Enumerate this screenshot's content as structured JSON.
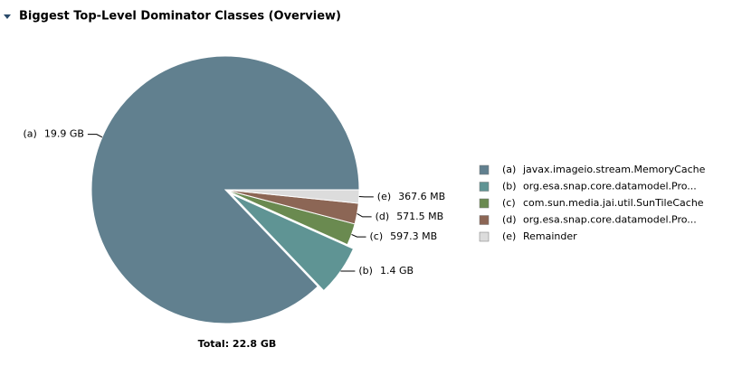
{
  "chart_data": {
    "type": "pie",
    "title": "Biggest Top-Level Dominator Classes (Overview)",
    "total": "Total: 22.8 GB",
    "letters": [
      "(a)",
      "(b)",
      "(c)",
      "(d)",
      "(e)"
    ],
    "categories": [
      "javax.imageio.stream.MemoryCache",
      "org.esa.snap.core.datamodel.Pro...",
      "com.sun.media.jai.util.SunTileCache",
      "org.esa.snap.core.datamodel.Pro...",
      "Remainder"
    ],
    "values": [
      19.9,
      1.4,
      0.5973,
      0.5715,
      0.3676
    ],
    "value_labels": [
      "19.9 GB",
      "1.4 GB",
      "597.3 MB",
      "571.5 MB",
      "367.6 MB"
    ],
    "colors": [
      "#61808f",
      "#5f9494",
      "#6a8a50",
      "#8c6655",
      "#dcdcdc"
    ]
  }
}
